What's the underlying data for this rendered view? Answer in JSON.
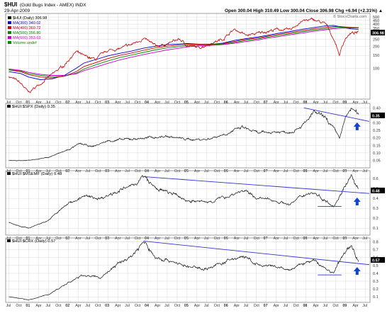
{
  "header": {
    "symbol": "$HUI",
    "name": "(Gold Bugs Index - AMEX) INDX",
    "date": "29-Apr-2009",
    "ohlc": "Open 300.04  High 310.49  Low 300.04  Close 306.98  Chg +6.94 (+2.31%) ▲",
    "credit": "© StockCharts.com"
  },
  "colors": {
    "price_up": "#cc0000",
    "price_down": "#111111",
    "ma300": "#0000cc",
    "ma400": "#cc0000",
    "ma500": "#008800",
    "ma600": "#cc00cc",
    "ratio_line": "#111111",
    "trendline": "#3333cc",
    "arrow": "#1144cc",
    "grid": "#d8d8d8"
  },
  "chart_data": [
    {
      "type": "line",
      "title": "$HUI (Daily) 306.98",
      "legend": [
        {
          "label": "$HUI (Daily) 306.98",
          "color": "#111111"
        },
        {
          "label": "MA(300) 340.02",
          "color": "#0000cc"
        },
        {
          "label": "MA(400) 360.72",
          "color": "#cc0000"
        },
        {
          "label": "MA(500) 356.80",
          "color": "#008800"
        },
        {
          "label": "MA(600) 353.63",
          "color": "#cc00cc"
        },
        {
          "label": "Volume undef",
          "color": "#008800"
        }
      ],
      "y_ticks": [
        100,
        150,
        200,
        250,
        300,
        350,
        400,
        450,
        500
      ],
      "y_scale": "log",
      "ylim": [
        38,
        560
      ],
      "last_value": "306.98",
      "x": [
        2000.5,
        2000.8,
        2001.0,
        2001.3,
        2001.6,
        2001.9,
        2002.2,
        2002.4,
        2002.7,
        2003.0,
        2003.3,
        2003.6,
        2003.9,
        2004.2,
        2004.5,
        2004.8,
        2005.0,
        2005.3,
        2005.6,
        2005.9,
        2006.2,
        2006.5,
        2006.8,
        2007.0,
        2007.3,
        2007.6,
        2007.9,
        2008.2,
        2008.5,
        2008.7,
        2008.85,
        2009.0,
        2009.15,
        2009.33
      ],
      "values": [
        78,
        62,
        46,
        62,
        82,
        110,
        168,
        145,
        132,
        175,
        185,
        210,
        255,
        200,
        215,
        250,
        205,
        190,
        220,
        250,
        340,
        280,
        300,
        320,
        340,
        330,
        440,
        460,
        400,
        250,
        150,
        260,
        300,
        307
      ],
      "moving_averages": [
        {
          "name": "MA(300)",
          "values": [
            90,
            85,
            76,
            70,
            72,
            80,
            100,
            118,
            132,
            148,
            160,
            172,
            188,
            200,
            210,
            215,
            218,
            214,
            212,
            220,
            240,
            255,
            268,
            280,
            300,
            318,
            340,
            360,
            380,
            385,
            370,
            355,
            345,
            340
          ]
        },
        {
          "name": "MA(400)",
          "values": [
            95,
            90,
            82,
            76,
            74,
            78,
            90,
            106,
            120,
            136,
            150,
            162,
            176,
            190,
            200,
            208,
            212,
            214,
            214,
            218,
            232,
            248,
            260,
            272,
            290,
            306,
            326,
            345,
            362,
            372,
            372,
            366,
            362,
            360
          ]
        },
        {
          "name": "MA(500)",
          "values": [
            96,
            92,
            85,
            80,
            77,
            78,
            86,
            98,
            112,
            126,
            140,
            152,
            165,
            178,
            190,
            198,
            205,
            208,
            210,
            214,
            226,
            240,
            252,
            264,
            280,
            296,
            314,
            332,
            348,
            358,
            362,
            360,
            358,
            357
          ]
        },
        {
          "name": "MA(600)",
          "values": [
            98,
            94,
            88,
            83,
            80,
            80,
            84,
            93,
            104,
            117,
            130,
            142,
            154,
            166,
            178,
            188,
            196,
            202,
            206,
            210,
            220,
            232,
            244,
            256,
            270,
            286,
            302,
            320,
            336,
            346,
            352,
            354,
            354,
            354
          ]
        }
      ]
    },
    {
      "type": "line",
      "title": "$HUI:$SPX (Daily) 0.35",
      "y_ticks": [
        0.05,
        0.1,
        0.15,
        0.2,
        0.25,
        0.3,
        0.35,
        0.4
      ],
      "ylim": [
        0.0,
        0.43
      ],
      "last_value": "0.35",
      "x": [
        2000.5,
        2001.0,
        2001.5,
        2002.0,
        2002.3,
        2002.6,
        2003.0,
        2003.5,
        2004.0,
        2004.5,
        2005.0,
        2005.5,
        2006.0,
        2006.4,
        2006.8,
        2007.2,
        2007.6,
        2008.0,
        2008.2,
        2008.5,
        2008.7,
        2008.85,
        2009.0,
        2009.15,
        2009.33
      ],
      "values": [
        0.05,
        0.05,
        0.07,
        0.12,
        0.16,
        0.14,
        0.18,
        0.19,
        0.2,
        0.21,
        0.19,
        0.19,
        0.23,
        0.27,
        0.23,
        0.24,
        0.24,
        0.3,
        0.37,
        0.33,
        0.26,
        0.2,
        0.33,
        0.4,
        0.35
      ],
      "trendline": {
        "x": [
          2007.95,
          2009.6
        ],
        "values": [
          0.4,
          0.31
        ]
      }
    },
    {
      "type": "line",
      "title": "$HUI:$MSEMF (Daily) 0.48",
      "y_ticks": [
        0.1,
        0.2,
        0.3,
        0.4,
        0.5,
        0.6
      ],
      "ylim": [
        0.03,
        0.68
      ],
      "last_value": "0.48",
      "x": [
        2000.5,
        2000.8,
        2001.0,
        2001.5,
        2002.0,
        2002.4,
        2002.8,
        2003.2,
        2003.6,
        2003.9,
        2004.2,
        2004.6,
        2005.0,
        2005.5,
        2006.0,
        2006.4,
        2006.8,
        2007.2,
        2007.6,
        2008.0,
        2008.2,
        2008.5,
        2008.7,
        2008.85,
        2009.0,
        2009.15,
        2009.33
      ],
      "values": [
        0.16,
        0.12,
        0.1,
        0.18,
        0.35,
        0.42,
        0.4,
        0.47,
        0.52,
        0.62,
        0.5,
        0.45,
        0.38,
        0.36,
        0.42,
        0.48,
        0.4,
        0.38,
        0.34,
        0.45,
        0.46,
        0.38,
        0.33,
        0.42,
        0.55,
        0.62,
        0.48
      ],
      "trendline": {
        "x": [
          2003.9,
          2009.6
        ],
        "values": [
          0.62,
          0.45
        ]
      },
      "support": {
        "x": [
          2008.3,
          2008.9
        ],
        "values": [
          0.32,
          0.32
        ]
      }
    },
    {
      "type": "line",
      "title": "$HUI:$CRX (Daily) 0.57",
      "y_ticks": [
        0.1,
        0.2,
        0.3,
        0.4,
        0.5,
        0.6,
        0.7,
        0.8
      ],
      "ylim": [
        0.03,
        0.85
      ],
      "last_value": "0.57",
      "x": [
        2000.5,
        2000.8,
        2001.0,
        2001.5,
        2002.0,
        2002.4,
        2002.8,
        2003.2,
        2003.6,
        2003.9,
        2004.2,
        2004.6,
        2005.0,
        2005.5,
        2006.0,
        2006.4,
        2006.8,
        2007.2,
        2007.6,
        2008.0,
        2008.2,
        2008.5,
        2008.7,
        2008.85,
        2009.0,
        2009.15,
        2009.33
      ],
      "values": [
        0.1,
        0.08,
        0.06,
        0.13,
        0.28,
        0.38,
        0.34,
        0.5,
        0.62,
        0.8,
        0.6,
        0.56,
        0.48,
        0.46,
        0.55,
        0.62,
        0.5,
        0.48,
        0.44,
        0.54,
        0.56,
        0.46,
        0.4,
        0.55,
        0.68,
        0.74,
        0.57
      ],
      "trendline": {
        "x": [
          2003.9,
          2009.6
        ],
        "values": [
          0.81,
          0.51
        ]
      },
      "support": {
        "x": [
          2008.3,
          2008.9
        ],
        "values": [
          0.38,
          0.38
        ]
      }
    }
  ],
  "x_axis": {
    "labels": [
      {
        "t": 2000.5,
        "l": "Jul"
      },
      {
        "t": 2000.75,
        "l": "Oct"
      },
      {
        "t": 2001.0,
        "l": "01"
      },
      {
        "t": 2001.25,
        "l": "Apr"
      },
      {
        "t": 2001.5,
        "l": "Jul"
      },
      {
        "t": 2001.75,
        "l": "Oct"
      },
      {
        "t": 2002.0,
        "l": "02"
      },
      {
        "t": 2002.25,
        "l": "Apr"
      },
      {
        "t": 2002.5,
        "l": "Jul"
      },
      {
        "t": 2002.75,
        "l": "Oct"
      },
      {
        "t": 2003.0,
        "l": "03"
      },
      {
        "t": 2003.25,
        "l": "Apr"
      },
      {
        "t": 2003.5,
        "l": "Jul"
      },
      {
        "t": 2003.75,
        "l": "Oct"
      },
      {
        "t": 2004.0,
        "l": "04"
      },
      {
        "t": 2004.25,
        "l": "Apr"
      },
      {
        "t": 2004.5,
        "l": "Jul"
      },
      {
        "t": 2004.75,
        "l": "Oct"
      },
      {
        "t": 2005.0,
        "l": "05"
      },
      {
        "t": 2005.25,
        "l": "Apr"
      },
      {
        "t": 2005.5,
        "l": "Jul"
      },
      {
        "t": 2005.75,
        "l": "Oct"
      },
      {
        "t": 2006.0,
        "l": "06"
      },
      {
        "t": 2006.25,
        "l": "Apr"
      },
      {
        "t": 2006.5,
        "l": "Jul"
      },
      {
        "t": 2006.75,
        "l": "Oct"
      },
      {
        "t": 2007.0,
        "l": "07"
      },
      {
        "t": 2007.25,
        "l": "Apr"
      },
      {
        "t": 2007.5,
        "l": "Jul"
      },
      {
        "t": 2007.75,
        "l": "Oct"
      },
      {
        "t": 2008.0,
        "l": "08"
      },
      {
        "t": 2008.25,
        "l": "Apr"
      },
      {
        "t": 2008.5,
        "l": "Jul"
      },
      {
        "t": 2008.75,
        "l": "Oct"
      },
      {
        "t": 2009.0,
        "l": "09"
      },
      {
        "t": 2009.25,
        "l": "Apr"
      },
      {
        "t": 2009.5,
        "l": "Jul"
      }
    ],
    "range": [
      2000.42,
      2009.62
    ]
  }
}
